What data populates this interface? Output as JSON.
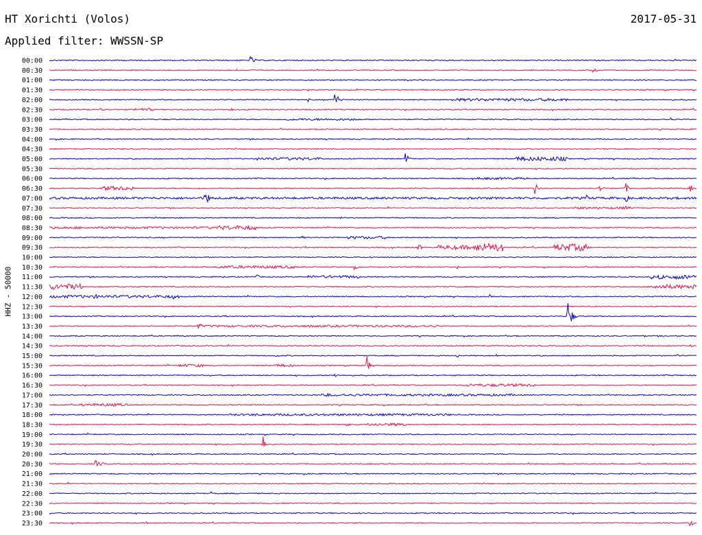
{
  "header": {
    "station": "HT Xorichti (Volos)",
    "date": "2017-05-31",
    "filter": "Applied filter: WWSSN-SP"
  },
  "chart_data": {
    "type": "line",
    "title": "HT Xorichti (Volos)",
    "subtitle": "Applied filter: WWSSN-SP",
    "date": "2017-05-31",
    "ylabel": "HHZ - 50000",
    "xlabel": "",
    "colors": [
      "#0000cc",
      "#ee1144"
    ],
    "grid": false,
    "legend": "none",
    "rows": [
      {
        "label": "00:00",
        "events": [
          [
            0.31,
            7,
            6
          ]
        ],
        "bursts": []
      },
      {
        "label": "00:30",
        "events": [
          [
            0.84,
            6,
            5
          ]
        ],
        "bursts": []
      },
      {
        "label": "01:00",
        "events": [],
        "bursts": []
      },
      {
        "label": "01:30",
        "events": [
          [
            0.7,
            2,
            3
          ]
        ],
        "bursts": []
      },
      {
        "label": "02:00",
        "events": [
          [
            0.44,
            14,
            5
          ],
          [
            0.4,
            3,
            2
          ]
        ],
        "bursts": [
          [
            0.62,
            0.8,
            2
          ]
        ]
      },
      {
        "label": "02:30",
        "events": [
          [
            0.08,
            5,
            3
          ],
          [
            0.28,
            4,
            3
          ]
        ],
        "bursts": [
          [
            0.13,
            0.16,
            2
          ]
        ]
      },
      {
        "label": "03:00",
        "events": [
          [
            0.96,
            3,
            3
          ],
          [
            0.78,
            2,
            3
          ]
        ],
        "bursts": [
          [
            0.36,
            0.48,
            1.5
          ]
        ]
      },
      {
        "label": "03:30",
        "events": [],
        "bursts": []
      },
      {
        "label": "04:00",
        "events": [],
        "bursts": []
      },
      {
        "label": "04:30",
        "events": [
          [
            0.94,
            2,
            2
          ]
        ],
        "bursts": []
      },
      {
        "label": "05:00",
        "events": [
          [
            0.55,
            8,
            5
          ]
        ],
        "bursts": [
          [
            0.32,
            0.42,
            2
          ],
          [
            0.72,
            0.8,
            3
          ]
        ]
      },
      {
        "label": "05:30",
        "events": [],
        "bursts": []
      },
      {
        "label": "06:00",
        "events": [],
        "bursts": [
          [
            0.66,
            0.74,
            1.5
          ]
        ]
      },
      {
        "label": "06:30",
        "events": [
          [
            0.75,
            9,
            4
          ],
          [
            0.85,
            6,
            4
          ],
          [
            0.89,
            9,
            4
          ],
          [
            0.99,
            6,
            4
          ]
        ],
        "bursts": [
          [
            0.08,
            0.13,
            3
          ]
        ]
      },
      {
        "label": "07:00",
        "events": [
          [
            0.24,
            13,
            6
          ],
          [
            0.83,
            5,
            4
          ],
          [
            0.89,
            10,
            3
          ]
        ],
        "bursts": [
          [
            0.0,
            1.0,
            1.5
          ]
        ]
      },
      {
        "label": "07:30",
        "events": [
          [
            0.89,
            6,
            2
          ]
        ],
        "bursts": [
          [
            0.81,
            0.9,
            1.5
          ]
        ]
      },
      {
        "label": "08:00",
        "events": [
          [
            0.45,
            2,
            3
          ]
        ],
        "bursts": []
      },
      {
        "label": "08:30",
        "events": [],
        "bursts": [
          [
            0.0,
            0.32,
            1.5
          ],
          [
            0.26,
            0.32,
            3
          ]
        ]
      },
      {
        "label": "09:00",
        "events": [
          [
            0.39,
            3,
            4
          ]
        ],
        "bursts": [
          [
            0.46,
            0.52,
            2
          ]
        ]
      },
      {
        "label": "09:30",
        "events": [
          [
            0.57,
            7,
            4
          ],
          [
            0.82,
            8,
            8
          ]
        ],
        "bursts": [
          [
            0.6,
            0.7,
            3
          ],
          [
            0.66,
            0.7,
            6
          ],
          [
            0.78,
            0.83,
            5
          ]
        ]
      },
      {
        "label": "10:00",
        "events": [],
        "bursts": []
      },
      {
        "label": "10:30",
        "events": [
          [
            0.47,
            5,
            5
          ],
          [
            0.57,
            3,
            3
          ],
          [
            0.63,
            4,
            4
          ]
        ],
        "bursts": [
          [
            0.26,
            0.38,
            2
          ]
        ]
      },
      {
        "label": "11:00",
        "events": [
          [
            0.32,
            4,
            4
          ],
          [
            0.93,
            4,
            4
          ]
        ],
        "bursts": [
          [
            0.4,
            0.48,
            2
          ],
          [
            0.94,
            1.0,
            3
          ]
        ]
      },
      {
        "label": "11:30",
        "events": [
          [
            0.97,
            6,
            4
          ]
        ],
        "bursts": [
          [
            0.0,
            0.05,
            4
          ],
          [
            0.93,
            1.0,
            3
          ]
        ]
      },
      {
        "label": "12:00",
        "events": [
          [
            0.07,
            7,
            3
          ],
          [
            0.19,
            8,
            3
          ],
          [
            0.68,
            3,
            3
          ]
        ],
        "bursts": [
          [
            0.0,
            0.2,
            2
          ]
        ]
      },
      {
        "label": "12:30",
        "events": [],
        "bursts": []
      },
      {
        "label": "13:00",
        "events": [
          [
            0.8,
            30,
            5
          ]
        ],
        "bursts": []
      },
      {
        "label": "13:30",
        "events": [
          [
            0.23,
            6,
            5
          ]
        ],
        "bursts": [
          [
            0.23,
            0.6,
            1.5
          ]
        ]
      },
      {
        "label": "14:00",
        "events": [
          [
            0.92,
            3,
            3
          ]
        ],
        "bursts": []
      },
      {
        "label": "14:30",
        "events": [
          [
            0.99,
            4,
            2
          ]
        ],
        "bursts": []
      },
      {
        "label": "15:00",
        "events": [
          [
            0.35,
            4,
            3
          ],
          [
            0.63,
            4,
            3
          ],
          [
            0.69,
            3,
            2
          ],
          [
            0.97,
            4,
            4
          ]
        ],
        "bursts": []
      },
      {
        "label": "15:30",
        "events": [
          [
            0.49,
            18,
            3
          ]
        ],
        "bursts": [
          [
            0.2,
            0.24,
            2
          ],
          [
            0.35,
            0.38,
            2
          ]
        ]
      },
      {
        "label": "16:00",
        "events": [
          [
            0.44,
            5,
            4
          ]
        ],
        "bursts": []
      },
      {
        "label": "16:30",
        "events": [],
        "bursts": [
          [
            0.64,
            0.75,
            2
          ]
        ]
      },
      {
        "label": "17:00",
        "events": [
          [
            0.43,
            4,
            5
          ]
        ],
        "bursts": [
          [
            0.42,
            0.72,
            1.5
          ]
        ]
      },
      {
        "label": "17:30",
        "events": [],
        "bursts": [
          [
            0.05,
            0.12,
            2
          ]
        ]
      },
      {
        "label": "18:00",
        "events": [],
        "bursts": [
          [
            0.28,
            0.62,
            1.5
          ]
        ]
      },
      {
        "label": "18:30",
        "events": [
          [
            0.46,
            10,
            2
          ]
        ],
        "bursts": [
          [
            0.49,
            0.55,
            2
          ]
        ]
      },
      {
        "label": "19:00",
        "events": [],
        "bursts": []
      },
      {
        "label": "19:30",
        "events": [
          [
            0.33,
            15,
            3
          ]
        ],
        "bursts": []
      },
      {
        "label": "20:00",
        "events": [],
        "bursts": []
      },
      {
        "label": "20:30",
        "events": [
          [
            0.07,
            6,
            10
          ]
        ],
        "bursts": []
      },
      {
        "label": "21:00",
        "events": [],
        "bursts": []
      },
      {
        "label": "21:30",
        "events": [],
        "bursts": []
      },
      {
        "label": "22:00",
        "events": [
          [
            0.25,
            4,
            2
          ]
        ],
        "bursts": []
      },
      {
        "label": "22:30",
        "events": [],
        "bursts": []
      },
      {
        "label": "23:00",
        "events": [],
        "bursts": []
      },
      {
        "label": "23:30",
        "events": [
          [
            0.15,
            2,
            2
          ],
          [
            0.99,
            10,
            3
          ]
        ],
        "bursts": []
      }
    ]
  }
}
